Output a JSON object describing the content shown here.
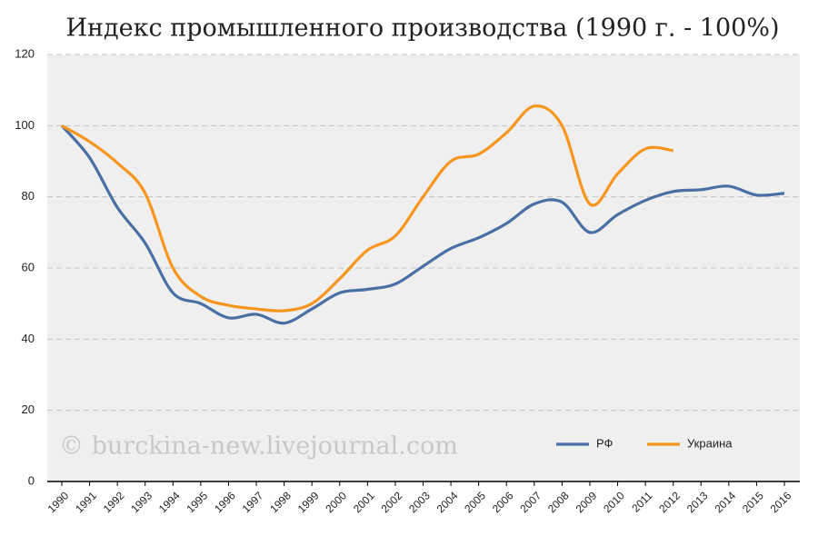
{
  "chart_data": {
    "type": "line",
    "title": "Индекс промышленного производства (1990 г. - 100%)",
    "annotation": "© burckina-new.livejournal.com",
    "categories": [
      "1990",
      "1991",
      "1992",
      "1993",
      "1994",
      "1995",
      "1996",
      "1997",
      "1998",
      "1999",
      "2000",
      "2001",
      "2002",
      "2003",
      "2004",
      "2005",
      "2006",
      "2007",
      "2008",
      "2009",
      "2010",
      "2011",
      "2012",
      "2013",
      "2014",
      "2015",
      "2016"
    ],
    "series": [
      {
        "name": "РФ",
        "color": "#4a6fa5",
        "values": [
          100,
          91,
          77,
          67,
          53,
          50,
          46,
          47,
          44.5,
          48.5,
          53,
          54,
          55.5,
          60.5,
          65.5,
          68.5,
          72.5,
          78,
          78.5,
          70,
          75,
          79,
          81.5,
          82,
          83,
          80.5,
          81
        ]
      },
      {
        "name": "Украина",
        "color": "#f7961e",
        "values": [
          100,
          95.5,
          89.5,
          81,
          60,
          52,
          49.5,
          48.5,
          48,
          50,
          57,
          65,
          69,
          80,
          90,
          92,
          98,
          105.5,
          100,
          78,
          86.5,
          93.5,
          93,
          null,
          null,
          null,
          null
        ]
      }
    ],
    "ylim": [
      0,
      120
    ],
    "yticks": [
      0,
      20,
      40,
      60,
      80,
      100,
      120
    ],
    "grid": true,
    "smooth": true,
    "legend": "lower right"
  }
}
